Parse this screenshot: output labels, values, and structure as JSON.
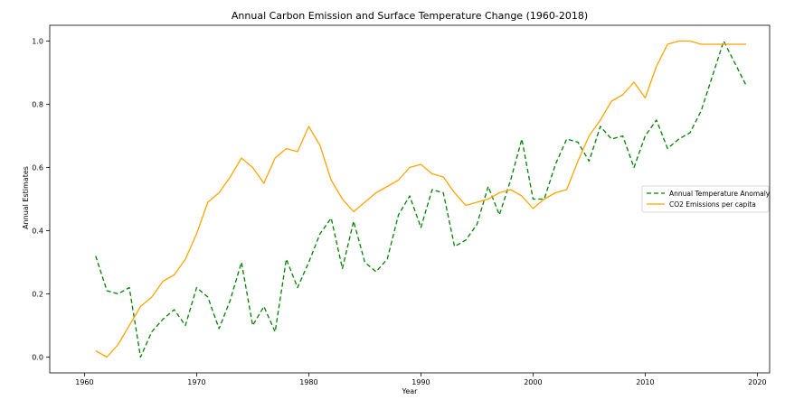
{
  "chart_data": {
    "type": "line",
    "title": "Annual Carbon Emission and Surface Temperature Change (1960-2018)",
    "xlabel": "Year",
    "ylabel": "Annual Estimates",
    "xlim": [
      1956.9,
      2021.1
    ],
    "ylim": [
      -0.05,
      1.05
    ],
    "xticks": [
      1960,
      1970,
      1980,
      1990,
      2000,
      2010,
      2020
    ],
    "yticks": [
      0.0,
      0.2,
      0.4,
      0.6,
      0.8,
      1.0
    ],
    "xtick_labels": [
      "1960",
      "1970",
      "1980",
      "1990",
      "2000",
      "2010",
      "2020"
    ],
    "ytick_labels": [
      "0.0",
      "0.2",
      "0.4",
      "0.6",
      "0.8",
      "1.0"
    ],
    "grid": false,
    "legend_position": "right",
    "series": [
      {
        "name": "Annual Temperature Anomaly",
        "color": "#008000",
        "style": "dashed",
        "x": [
          1961,
          1962,
          1963,
          1964,
          1965,
          1966,
          1967,
          1968,
          1969,
          1970,
          1971,
          1972,
          1973,
          1974,
          1975,
          1976,
          1977,
          1978,
          1979,
          1980,
          1981,
          1982,
          1983,
          1984,
          1985,
          1986,
          1987,
          1988,
          1989,
          1990,
          1991,
          1992,
          1993,
          1994,
          1995,
          1996,
          1997,
          1998,
          1999,
          2000,
          2001,
          2002,
          2003,
          2004,
          2005,
          2006,
          2007,
          2008,
          2009,
          2010,
          2011,
          2012,
          2013,
          2014,
          2015,
          2016,
          2017,
          2018,
          2019
        ],
        "y": [
          0.32,
          0.21,
          0.2,
          0.22,
          0.0,
          0.08,
          0.12,
          0.15,
          0.1,
          0.22,
          0.19,
          0.09,
          0.18,
          0.3,
          0.1,
          0.16,
          0.08,
          0.31,
          0.22,
          0.3,
          0.39,
          0.44,
          0.28,
          0.43,
          0.3,
          0.27,
          0.31,
          0.45,
          0.51,
          0.41,
          0.53,
          0.52,
          0.35,
          0.37,
          0.42,
          0.54,
          0.45,
          0.56,
          0.69,
          0.5,
          0.5,
          0.61,
          0.69,
          0.68,
          0.62,
          0.73,
          0.69,
          0.7,
          0.6,
          0.7,
          0.75,
          0.66,
          0.69,
          0.71,
          0.78,
          0.89,
          1.0,
          0.93,
          0.86
        ]
      },
      {
        "name": "CO2 Emissions per capita",
        "color": "#ffa500",
        "style": "solid",
        "x": [
          1961,
          1962,
          1963,
          1964,
          1965,
          1966,
          1967,
          1968,
          1969,
          1970,
          1971,
          1972,
          1973,
          1974,
          1975,
          1976,
          1977,
          1978,
          1979,
          1980,
          1981,
          1982,
          1983,
          1984,
          1985,
          1986,
          1987,
          1988,
          1989,
          1990,
          1991,
          1992,
          1993,
          1994,
          1995,
          1996,
          1997,
          1998,
          1999,
          2000,
          2001,
          2002,
          2003,
          2004,
          2005,
          2006,
          2007,
          2008,
          2009,
          2010,
          2011,
          2012,
          2013,
          2014,
          2015,
          2016,
          2017,
          2018,
          2019
        ],
        "y": [
          0.02,
          0.0,
          0.04,
          0.1,
          0.16,
          0.19,
          0.24,
          0.26,
          0.31,
          0.39,
          0.49,
          0.52,
          0.57,
          0.63,
          0.6,
          0.55,
          0.63,
          0.66,
          0.65,
          0.73,
          0.67,
          0.56,
          0.5,
          0.46,
          0.49,
          0.52,
          0.54,
          0.56,
          0.6,
          0.61,
          0.58,
          0.57,
          0.52,
          0.48,
          0.49,
          0.5,
          0.52,
          0.53,
          0.51,
          0.47,
          0.5,
          0.52,
          0.53,
          0.62,
          0.7,
          0.75,
          0.81,
          0.83,
          0.87,
          0.82,
          0.92,
          0.99,
          1.0,
          1.0,
          0.99,
          0.99,
          0.99,
          0.99,
          0.99
        ]
      }
    ]
  }
}
